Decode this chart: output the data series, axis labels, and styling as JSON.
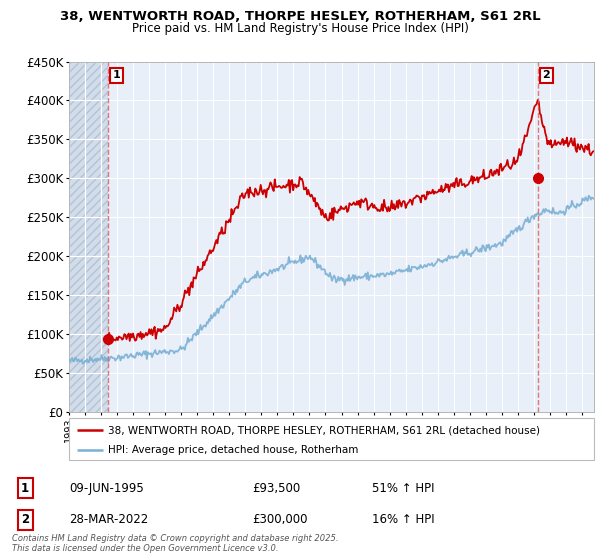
{
  "title1": "38, WENTWORTH ROAD, THORPE HESLEY, ROTHERHAM, S61 2RL",
  "title2": "Price paid vs. HM Land Registry's House Price Index (HPI)",
  "legend_label1": "38, WENTWORTH ROAD, THORPE HESLEY, ROTHERHAM, S61 2RL (detached house)",
  "legend_label2": "HPI: Average price, detached house, Rotherham",
  "annotation1_label": "1",
  "annotation1_date": "09-JUN-1995",
  "annotation1_price": "£93,500",
  "annotation1_hpi": "51% ↑ HPI",
  "annotation2_label": "2",
  "annotation2_date": "28-MAR-2022",
  "annotation2_price": "£300,000",
  "annotation2_hpi": "16% ↑ HPI",
  "footer": "Contains HM Land Registry data © Crown copyright and database right 2025.\nThis data is licensed under the Open Government Licence v3.0.",
  "price_color": "#cc0000",
  "hpi_color": "#7ab0d4",
  "vline_color": "#e06060",
  "background_plot": "#e8eff8",
  "grid_color": "#ffffff",
  "ylim": [
    0,
    450000
  ],
  "yticks": [
    0,
    50000,
    100000,
    150000,
    200000,
    250000,
    300000,
    350000,
    400000,
    450000
  ],
  "ytick_labels": [
    "£0",
    "£50K",
    "£100K",
    "£150K",
    "£200K",
    "£250K",
    "£300K",
    "£350K",
    "£400K",
    "£450K"
  ],
  "xlim_start": 1993,
  "xlim_end": 2025.75,
  "sale1_x": 1995.44,
  "sale1_y": 93500,
  "sale2_x": 2022.23,
  "sale2_y": 300000
}
